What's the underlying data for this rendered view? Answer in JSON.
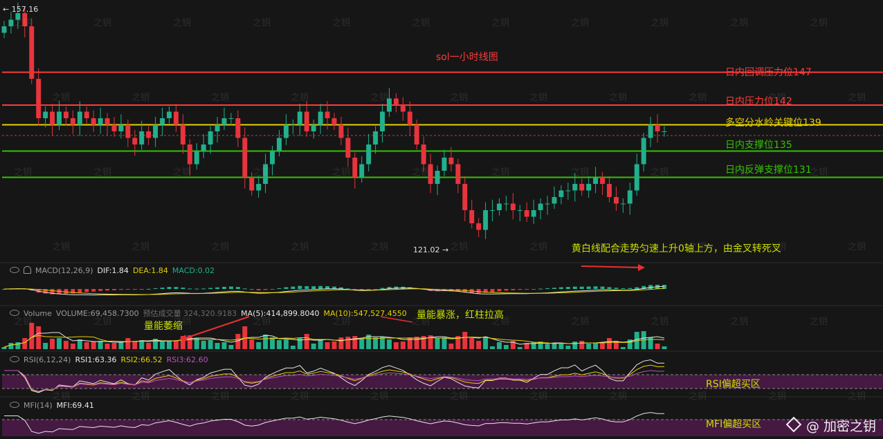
{
  "chart_data": [
    {
      "type": "candlestick",
      "title": "sol一小时线图",
      "ylim": [
        118,
        158
      ],
      "price_labels": {
        "high": "← 157.16",
        "low": "121.02 →"
      },
      "horizontal_levels": [
        {
          "label": "日内回调压力位147",
          "value": 147,
          "color": "#ff3b3b"
        },
        {
          "label": "日内压力位142",
          "value": 142,
          "color": "#ff3b3b"
        },
        {
          "label": "多空分水岭关键位139",
          "value": 139,
          "color": "#e6d200"
        },
        {
          "label": "日内支撑位135",
          "value": 135,
          "color": "#34c400"
        },
        {
          "label": "日内反弹支撑位131",
          "value": 131,
          "color": "#34c400"
        }
      ],
      "current_price_dashed": 138,
      "close_series": [
        154,
        155,
        156,
        154,
        146,
        140,
        141,
        139,
        141,
        140,
        139,
        141,
        140,
        139,
        140,
        139,
        138,
        139,
        137,
        136,
        138,
        137,
        139,
        140,
        141,
        139,
        136,
        133,
        135,
        136,
        138,
        139,
        140,
        140,
        137,
        131,
        129,
        130,
        133,
        135,
        137,
        139,
        139,
        141,
        138,
        139,
        141,
        140,
        139,
        137,
        134,
        131,
        133,
        136,
        138,
        141,
        143,
        142,
        141,
        139,
        136,
        133,
        130,
        132,
        134,
        133,
        130,
        126,
        124,
        123,
        126,
        126,
        127,
        127,
        126,
        126,
        125,
        126,
        127,
        127,
        128,
        129,
        129,
        130,
        129,
        130,
        131,
        130,
        128,
        127,
        127,
        129,
        133,
        137,
        139,
        138,
        138
      ],
      "annotation": "黄白线配合走势匀速上升0轴上方，由金叉转死叉"
    },
    {
      "type": "line",
      "name": "MACD",
      "header": {
        "title": "MACD(12,26,9)",
        "dif": "DIF:1.84",
        "dea": "DEA:1.84",
        "macd": "MACD:0.02"
      }
    },
    {
      "type": "bar",
      "name": "Volume",
      "header": {
        "title": "Volume",
        "volume": "VOLUME:69,458.7300",
        "est": "预估成交量 324,320.9183",
        "ma5": "MA(5):414,899.8040",
        "ma10": "MA(10):547,527.4550"
      },
      "annotations": [
        "量能萎缩",
        "量能暴涨，红柱拉高"
      ]
    },
    {
      "type": "line",
      "name": "RSI",
      "header": {
        "title": "RSI(6,12,24)",
        "rsi1": "RSI1:63.36",
        "rsi2": "RSI2:66.52",
        "rsi3": "RSI3:62.60"
      },
      "zone_label": "RSI偏超买区"
    },
    {
      "type": "line",
      "name": "MFI",
      "header": {
        "title": "MFI(14)",
        "mfi": "MFI:69.41"
      },
      "zone_label": "MFI偏超买区"
    }
  ],
  "watermark": "之钥",
  "footer": "@ 加密之钥",
  "colors": {
    "up": "#22b08c",
    "down": "#e8343c",
    "bg": "#161616",
    "annot": "#c8e000",
    "title_red": "#ff3b3b",
    "purple_zone": "#4a1947"
  }
}
